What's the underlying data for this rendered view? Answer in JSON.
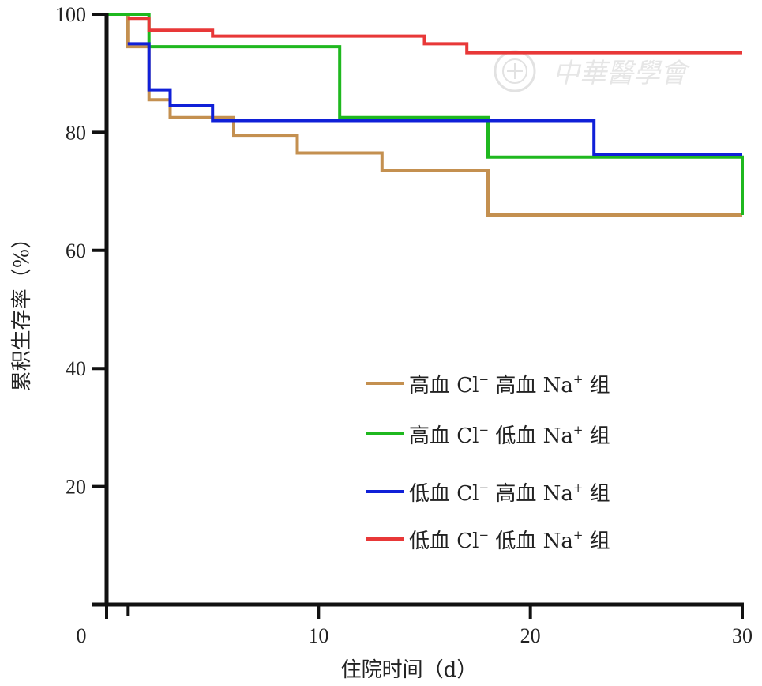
{
  "chart_data": {
    "type": "line",
    "step": true,
    "xlabel": "住院时间（d）",
    "ylabel": "累积生存率（%）",
    "xlim": [
      0,
      30
    ],
    "ylim": [
      0,
      100
    ],
    "x_ticks": [
      0,
      10,
      20,
      30
    ],
    "y_ticks": [
      20,
      40,
      60,
      80,
      100
    ],
    "legend_position": "lower-right",
    "grid": false,
    "series": [
      {
        "name": "高血 Cl⁻ 高血 Na⁺ 组",
        "color": "#c49050",
        "x": [
          0,
          1.0,
          1.0,
          2.0,
          2.0,
          3.0,
          3.0,
          6.0,
          6.0,
          9.0,
          9.0,
          13.0,
          13.0,
          18.0,
          18.0,
          30.0
        ],
        "y": [
          100,
          100,
          94.5,
          94.5,
          85.5,
          85.5,
          82.5,
          82.5,
          79.5,
          79.5,
          76.5,
          76.5,
          73.5,
          73.5,
          66.0,
          66.0
        ]
      },
      {
        "name": "高血 Cl⁻ 低血 Na⁺ 组",
        "color": "#1fb81f",
        "x": [
          0,
          2.0,
          2.0,
          11.0,
          11.0,
          18.0,
          18.0,
          30.0,
          30.0
        ],
        "y": [
          100,
          100,
          94.5,
          94.5,
          82.5,
          82.5,
          75.8,
          75.8,
          66.0
        ]
      },
      {
        "name": "低血 Cl⁻ 高血 Na⁺ 组",
        "color": "#1020d8",
        "x": [
          1.0,
          2.0,
          2.0,
          3.0,
          3.0,
          5.0,
          5.0,
          23.0,
          23.0,
          30.0
        ],
        "y": [
          95.0,
          95.0,
          87.2,
          87.2,
          84.5,
          84.5,
          82.0,
          82.0,
          76.2,
          76.2
        ]
      },
      {
        "name": "低血 Cl⁻ 低血 Na⁺ 组",
        "color": "#e83838",
        "x": [
          1.0,
          2.0,
          2.0,
          5.0,
          5.0,
          15.0,
          15.0,
          17.0,
          17.0,
          30.0
        ],
        "y": [
          99.3,
          99.3,
          97.3,
          97.3,
          96.3,
          96.3,
          95.0,
          95.0,
          93.5,
          93.5
        ]
      }
    ]
  },
  "legend": [
    {
      "name_a": "高血 Cl",
      "sup_a": "−",
      "name_b": " 高血 Na",
      "sup_b": "+",
      "name_c": " 组"
    },
    {
      "name_a": "高血 Cl",
      "sup_a": "−",
      "name_b": " 低血 Na",
      "sup_b": "+",
      "name_c": " 组"
    },
    {
      "name_a": "低血 Cl",
      "sup_a": "−",
      "name_b": " 高血 Na",
      "sup_b": "+",
      "name_c": " 组"
    },
    {
      "name_a": "低血 Cl",
      "sup_a": "−",
      "name_b": " 低血 Na",
      "sup_b": "+",
      "name_c": " 组"
    }
  ],
  "watermark": {
    "text": "中華醫學會",
    "icon": "seal-logo-icon"
  }
}
